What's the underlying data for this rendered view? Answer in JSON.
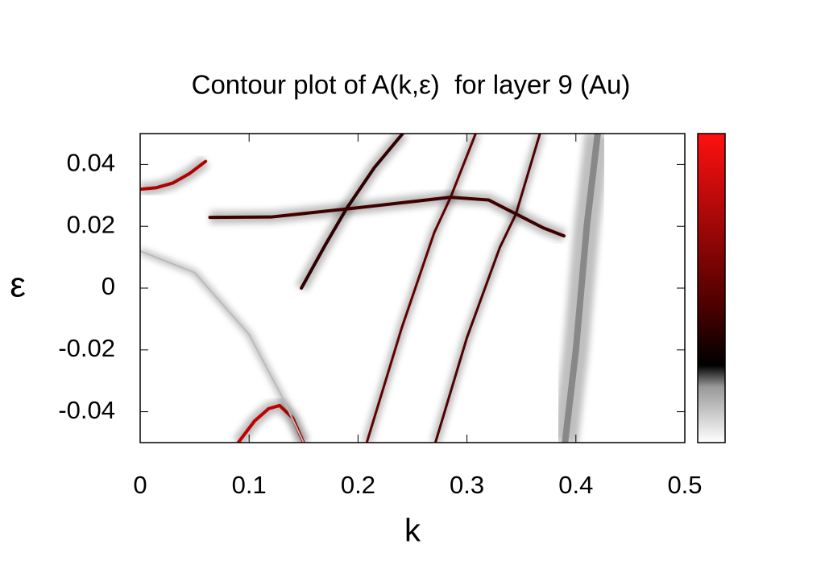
{
  "chart_data": {
    "type": "contour",
    "title": "Contour plot of A(k,ε)  for layer 9 (Au)",
    "xlabel": "k",
    "ylabel": "ε",
    "xlim": [
      0,
      0.5
    ],
    "ylim": [
      -0.05,
      0.05
    ],
    "xticks": [
      0,
      0.1,
      0.2,
      0.3,
      0.4,
      0.5
    ],
    "yticks": [
      -0.04,
      -0.02,
      0,
      0.02,
      0.04
    ],
    "colorbar": true,
    "ridges": [
      {
        "k": [
          0,
          0.015,
          0.03,
          0.045,
          0.06
        ],
        "e": [
          0.032,
          0.0325,
          0.034,
          0.037,
          0.041
        ],
        "color": "#b00000",
        "width": 4
      },
      {
        "k": [
          0.09,
          0.105,
          0.118,
          0.128,
          0.14,
          0.15
        ],
        "e": [
          -0.05,
          -0.043,
          -0.039,
          -0.038,
          -0.042,
          -0.05
        ],
        "color": "#c00000",
        "width": 4
      },
      {
        "k": [
          0.148,
          0.17,
          0.189,
          0.215,
          0.241
        ],
        "e": [
          0,
          0.014,
          0.0255,
          0.039,
          0.05
        ],
        "color": "#300000",
        "width": 4
      },
      {
        "k": [
          0.208,
          0.24,
          0.27,
          0.285,
          0.308
        ],
        "e": [
          -0.05,
          -0.013,
          0.018,
          0.0294,
          0.05
        ],
        "color": "#600000",
        "width": 3
      },
      {
        "k": [
          0.271,
          0.3,
          0.33,
          0.345,
          0.367
        ],
        "e": [
          -0.05,
          -0.016,
          0.013,
          0.024,
          0.05
        ],
        "color": "#500000",
        "width": 3
      },
      {
        "k": [
          0.064,
          0.12,
          0.2,
          0.285,
          0.32,
          0.345,
          0.37,
          0.389
        ],
        "e": [
          0.0229,
          0.023,
          0.026,
          0.0294,
          0.0285,
          0.024,
          0.0195,
          0.0169
        ],
        "color": "#400000",
        "width": 4
      },
      {
        "k": [
          0,
          0.05,
          0.1,
          0.13,
          0.15
        ],
        "e": [
          0.012,
          0.005,
          -0.015,
          -0.035,
          -0.05
        ],
        "color": "#bbbbbb",
        "width": 2
      },
      {
        "k": [
          0.39,
          0.4,
          0.41,
          0.42
        ],
        "e": [
          -0.05,
          -0.02,
          0.02,
          0.05
        ],
        "color": "#888888",
        "width": 8
      }
    ]
  }
}
